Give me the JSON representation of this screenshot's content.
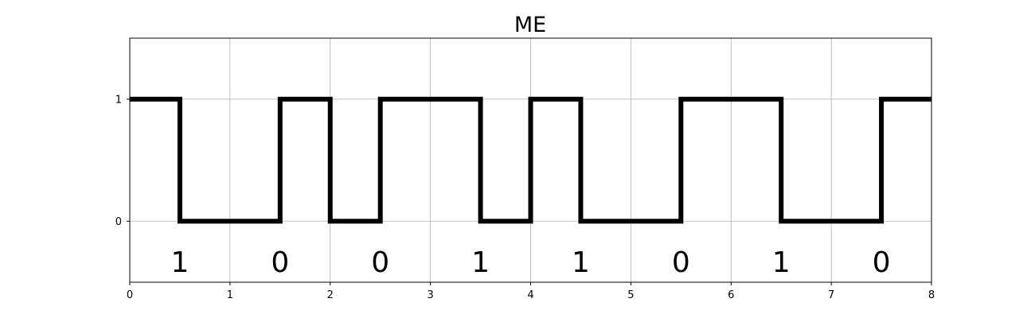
{
  "chart_data": {
    "type": "line",
    "title": "ME",
    "xlabel": "",
    "ylabel": "",
    "xlim": [
      0,
      8
    ],
    "ylim": [
      -0.5,
      1.5
    ],
    "x_ticks": [
      "0",
      "1",
      "2",
      "3",
      "4",
      "5",
      "6",
      "7",
      "8"
    ],
    "y_ticks": [
      "0",
      "1"
    ],
    "grid": true,
    "line_color": "#000000",
    "grid_color": "#b0b0b0",
    "bits": [
      "1",
      "0",
      "0",
      "1",
      "1",
      "0",
      "1",
      "0"
    ],
    "bit_label_y": -0.33,
    "series": [
      {
        "x": [
          0,
          0.5,
          0.5,
          1.5,
          1.5,
          2,
          2,
          2.5,
          2.5,
          3.5,
          3.5,
          4,
          4,
          4.5,
          4.5,
          5.5,
          5.5,
          6.5,
          6.5,
          7.5,
          7.5,
          8
        ],
        "y": [
          1,
          1,
          0,
          0,
          1,
          1,
          0,
          0,
          1,
          1,
          0,
          0,
          1,
          1,
          0,
          0,
          1,
          1,
          0,
          0,
          1,
          1
        ]
      }
    ]
  }
}
